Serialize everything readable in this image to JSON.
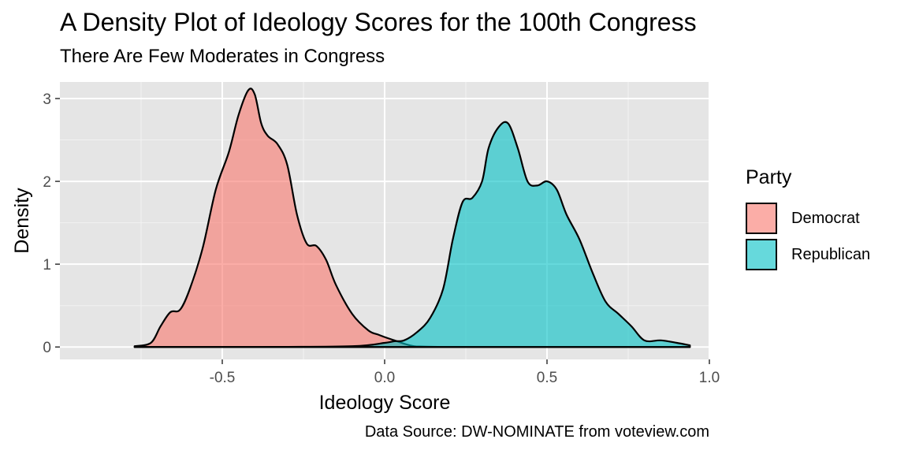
{
  "title": "A Density Plot of Ideology Scores for the 100th Congress",
  "subtitle": "There Are Few Moderates in Congress",
  "caption": "Data Source: DW-NOMINATE from voteview.com",
  "legend": {
    "title": "Party",
    "items": [
      {
        "label": "Democrat",
        "color": "#F8766D"
      },
      {
        "label": "Republican",
        "color": "#00BFC4"
      }
    ]
  },
  "chart_data": {
    "type": "area",
    "title": "A Density Plot of Ideology Scores for the 100th Congress",
    "subtitle": "There Are Few Moderates in Congress",
    "xlabel": "Ideology Score",
    "ylabel": "Density",
    "xlim": [
      -1.0,
      1.0
    ],
    "ylim": [
      -0.15,
      3.2
    ],
    "x_ticks": [
      -0.5,
      0.0,
      0.5,
      1.0
    ],
    "x_tick_labels": [
      "-0.5",
      "0.0",
      "0.5",
      "1.0"
    ],
    "y_ticks": [
      0,
      1,
      2,
      3
    ],
    "y_tick_labels": [
      "0",
      "1",
      "2",
      "3"
    ],
    "grid": true,
    "legend_position": "right",
    "background": "#E5E5E5",
    "fill_opacity": 0.6,
    "series": [
      {
        "name": "Democrat",
        "color": "#F8766D",
        "x": [
          -0.77,
          -0.72,
          -0.69,
          -0.66,
          -0.63,
          -0.6,
          -0.56,
          -0.52,
          -0.48,
          -0.45,
          -0.42,
          -0.4,
          -0.38,
          -0.36,
          -0.33,
          -0.3,
          -0.27,
          -0.24,
          -0.21,
          -0.18,
          -0.15,
          -0.1,
          -0.05,
          -0.02,
          0.0,
          0.03,
          0.06,
          0.09,
          0.12,
          0.2,
          0.4,
          0.6,
          0.8,
          0.94
        ],
        "y": [
          0.01,
          0.05,
          0.25,
          0.42,
          0.45,
          0.7,
          1.2,
          1.9,
          2.35,
          2.8,
          3.1,
          3.05,
          2.7,
          2.55,
          2.45,
          2.2,
          1.6,
          1.25,
          1.22,
          1.05,
          0.75,
          0.4,
          0.2,
          0.15,
          0.12,
          0.08,
          0.04,
          0.01,
          0.005,
          0.0,
          0.0,
          0.0,
          0.0,
          0.0
        ]
      },
      {
        "name": "Republican",
        "color": "#00BFC4",
        "x": [
          -0.77,
          -0.4,
          -0.1,
          0.0,
          0.03,
          0.06,
          0.1,
          0.14,
          0.18,
          0.21,
          0.24,
          0.27,
          0.3,
          0.32,
          0.35,
          0.38,
          0.41,
          0.44,
          0.47,
          0.5,
          0.53,
          0.56,
          0.6,
          0.64,
          0.68,
          0.72,
          0.76,
          0.8,
          0.85,
          0.9,
          0.94
        ],
        "y": [
          0.0,
          0.0,
          0.01,
          0.05,
          0.07,
          0.08,
          0.18,
          0.35,
          0.7,
          1.3,
          1.75,
          1.8,
          2.0,
          2.4,
          2.65,
          2.7,
          2.4,
          2.0,
          1.95,
          2.0,
          1.9,
          1.6,
          1.3,
          0.9,
          0.55,
          0.4,
          0.25,
          0.08,
          0.08,
          0.05,
          0.02
        ]
      }
    ]
  }
}
